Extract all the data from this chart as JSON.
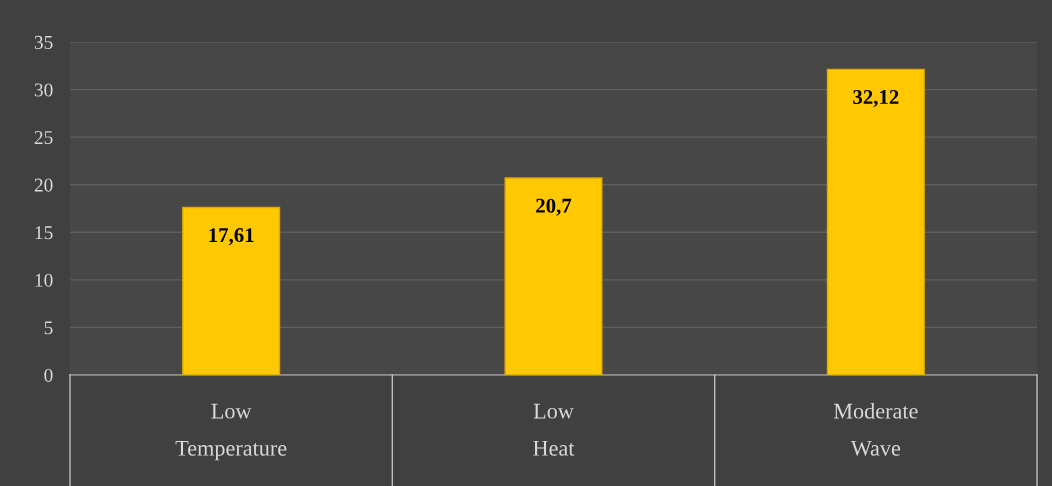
{
  "chart_data": {
    "type": "bar",
    "categories": [
      "Low\nTemperature",
      "Low\nHeat",
      "Moderate\nWave"
    ],
    "values": [
      17.61,
      20.7,
      32.12
    ],
    "value_labels": [
      "17,61",
      "20,7",
      "32,12"
    ],
    "color": "#ffc800",
    "ylim": [
      0,
      35
    ],
    "yticks": [
      0,
      5,
      10,
      15,
      20,
      25,
      30,
      35
    ],
    "grid": "y"
  }
}
